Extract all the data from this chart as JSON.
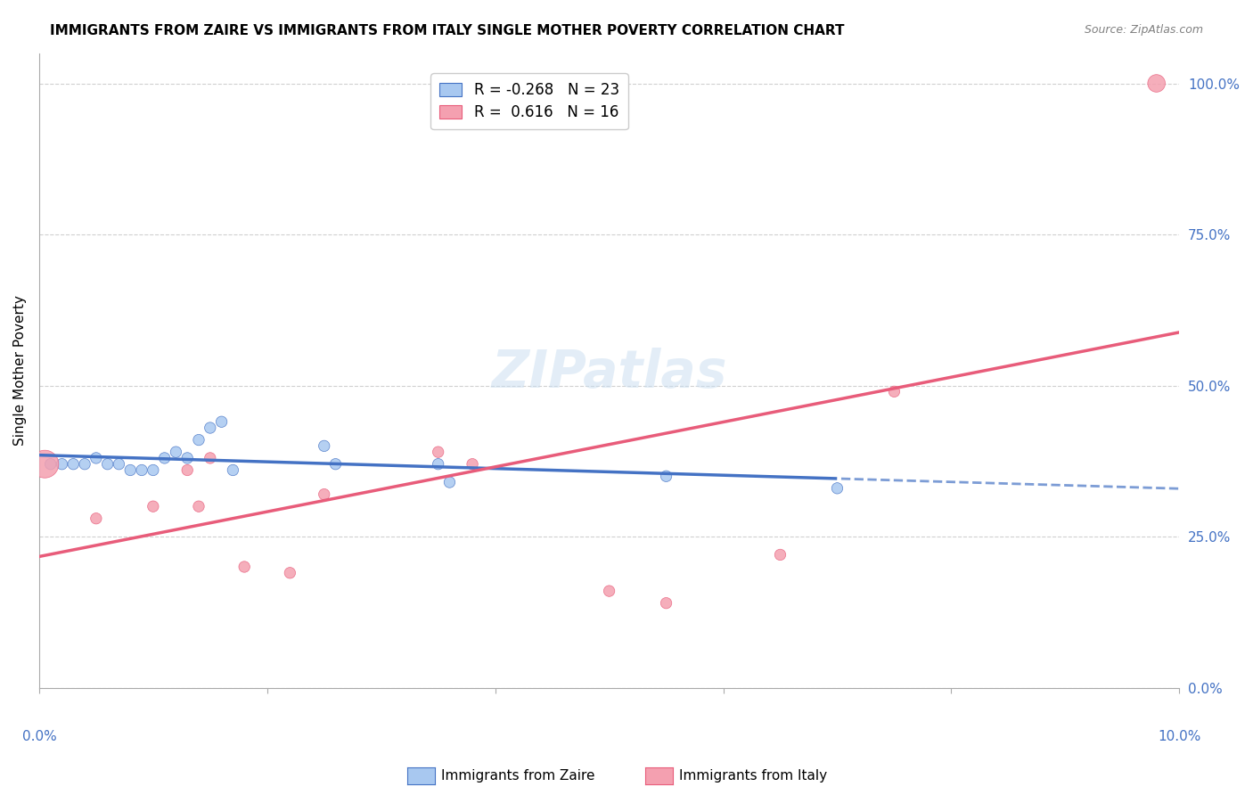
{
  "title": "IMMIGRANTS FROM ZAIRE VS IMMIGRANTS FROM ITALY SINGLE MOTHER POVERTY CORRELATION CHART",
  "source": "Source: ZipAtlas.com",
  "ylabel": "Single Mother Poverty",
  "ytick_values": [
    0,
    25,
    50,
    75,
    100
  ],
  "xlim": [
    0,
    10
  ],
  "ylim": [
    0,
    105
  ],
  "legend_entry_zaire": "R = -0.268   N = 23",
  "legend_entry_italy": "R =  0.616   N = 16",
  "legend_label_zaire": "Immigrants from Zaire",
  "legend_label_italy": "Immigrants from Italy",
  "color_zaire": "#a8c8f0",
  "color_italy": "#f4a0b0",
  "color_zaire_line": "#4472c4",
  "color_italy_line": "#e85c7a",
  "watermark": "ZIPatlas",
  "zaire_points": [
    [
      0.1,
      37
    ],
    [
      0.2,
      37
    ],
    [
      0.3,
      37
    ],
    [
      0.4,
      37
    ],
    [
      0.5,
      38
    ],
    [
      0.6,
      37
    ],
    [
      0.7,
      37
    ],
    [
      0.8,
      36
    ],
    [
      0.9,
      36
    ],
    [
      1.0,
      36
    ],
    [
      1.1,
      38
    ],
    [
      1.2,
      39
    ],
    [
      1.3,
      38
    ],
    [
      1.4,
      41
    ],
    [
      1.5,
      43
    ],
    [
      1.6,
      44
    ],
    [
      1.7,
      36
    ],
    [
      2.5,
      40
    ],
    [
      2.6,
      37
    ],
    [
      3.5,
      37
    ],
    [
      3.6,
      34
    ],
    [
      5.5,
      35
    ],
    [
      7.0,
      33
    ]
  ],
  "italy_points": [
    [
      0.05,
      37
    ],
    [
      0.5,
      28
    ],
    [
      1.0,
      30
    ],
    [
      1.3,
      36
    ],
    [
      1.4,
      30
    ],
    [
      1.5,
      38
    ],
    [
      1.8,
      20
    ],
    [
      2.2,
      19
    ],
    [
      2.5,
      32
    ],
    [
      3.5,
      39
    ],
    [
      3.8,
      37
    ],
    [
      5.0,
      16
    ],
    [
      5.5,
      14
    ],
    [
      6.5,
      22
    ],
    [
      7.5,
      49
    ],
    [
      9.8,
      100
    ]
  ],
  "zaire_bubble_sizes": [
    80,
    80,
    80,
    80,
    80,
    80,
    80,
    80,
    80,
    80,
    80,
    80,
    80,
    80,
    80,
    80,
    80,
    80,
    80,
    80,
    80,
    80,
    80
  ],
  "italy_bubble_sizes": [
    500,
    80,
    80,
    80,
    80,
    80,
    80,
    80,
    80,
    80,
    80,
    80,
    80,
    80,
    80,
    200
  ]
}
